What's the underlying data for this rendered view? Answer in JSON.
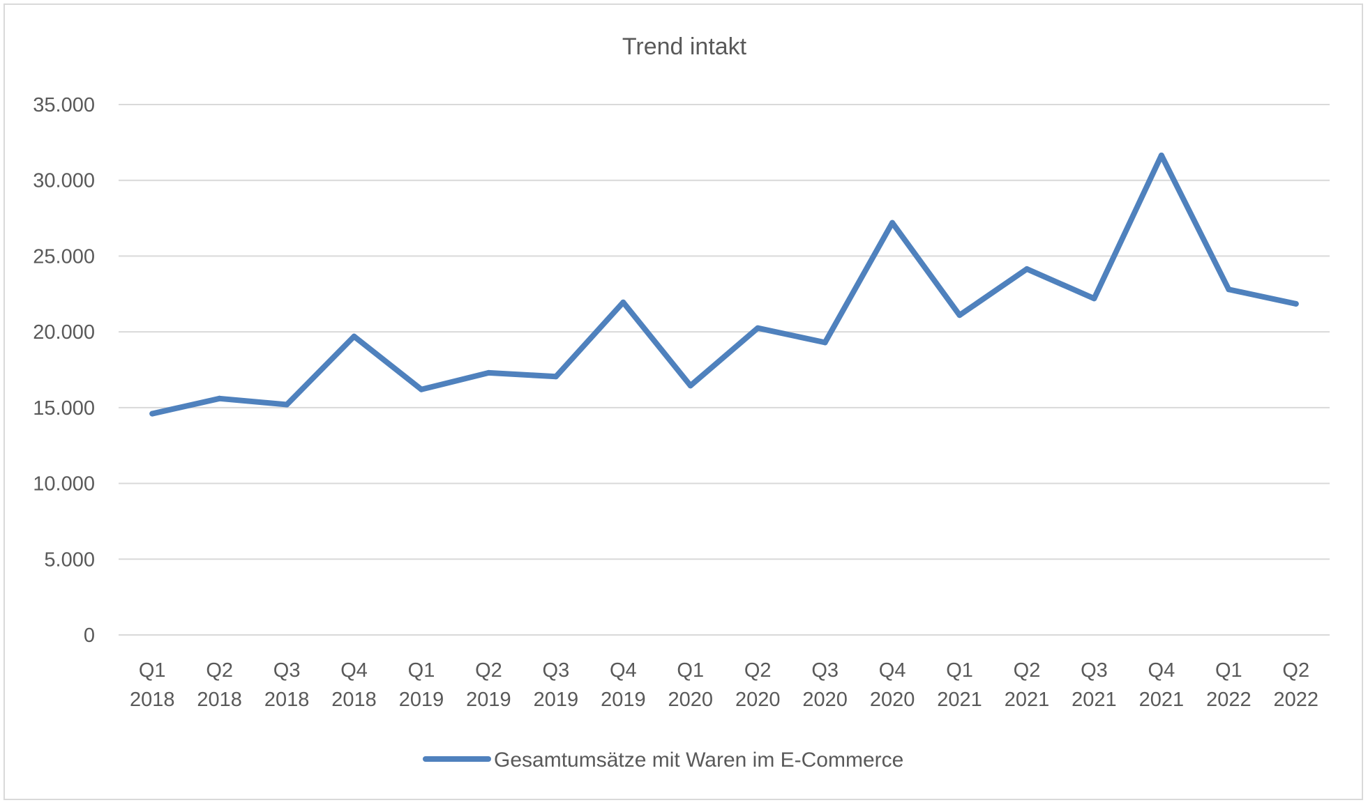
{
  "chart_data": {
    "type": "line",
    "title": "Trend intakt",
    "categories": [
      [
        "Q1",
        "2018"
      ],
      [
        "Q2",
        "2018"
      ],
      [
        "Q3",
        "2018"
      ],
      [
        "Q4",
        "2018"
      ],
      [
        "Q1",
        "2019"
      ],
      [
        "Q2",
        "2019"
      ],
      [
        "Q3",
        "2019"
      ],
      [
        "Q4",
        "2019"
      ],
      [
        "Q1",
        "2020"
      ],
      [
        "Q2",
        "2020"
      ],
      [
        "Q3",
        "2020"
      ],
      [
        "Q4",
        "2020"
      ],
      [
        "Q1",
        "2021"
      ],
      [
        "Q2",
        "2021"
      ],
      [
        "Q3",
        "2021"
      ],
      [
        "Q4",
        "2021"
      ],
      [
        "Q1",
        "2022"
      ],
      [
        "Q2",
        "2022"
      ]
    ],
    "series": [
      {
        "name": "Gesamtumsätze mit Waren im E-Commerce",
        "color": "#4f81bd",
        "values": [
          14600,
          15600,
          15200,
          19700,
          16200,
          17300,
          17050,
          21950,
          16450,
          20250,
          19300,
          27200,
          21100,
          24150,
          22200,
          31650,
          22800,
          21850
        ]
      }
    ],
    "y_ticks": [
      "0",
      "5.000",
      "10.000",
      "15.000",
      "20.000",
      "25.000",
      "30.000",
      "35.000"
    ],
    "ylim": [
      0,
      35000
    ],
    "grid": true,
    "legend_position": "bottom"
  }
}
